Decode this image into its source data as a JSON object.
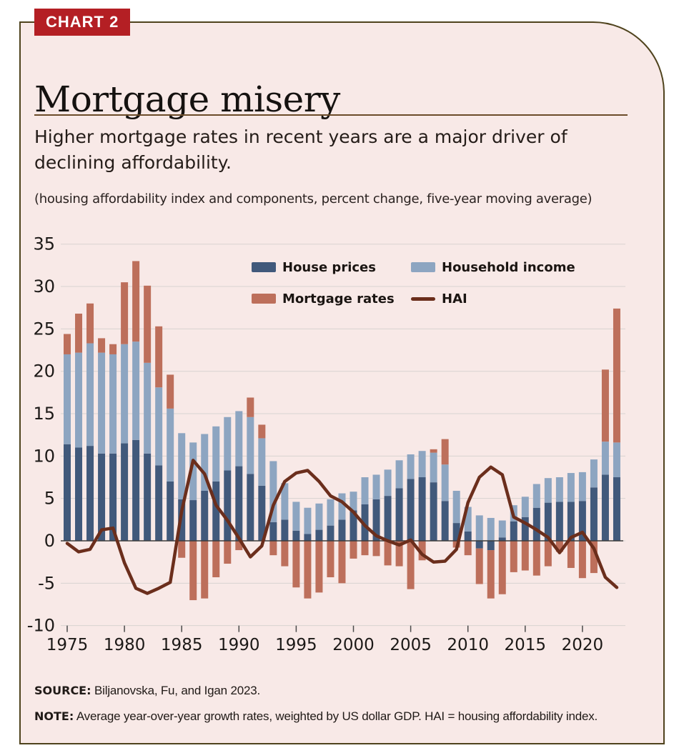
{
  "badge": "CHART 2",
  "title": "Mortgage misery",
  "subtitle": "Higher mortgage rates in recent years are a major driver of declining affordability.",
  "units_note": "(housing affordability index and components, percent change, five-year moving average)",
  "legend": {
    "items": [
      {
        "label": "House prices",
        "swatch": "house"
      },
      {
        "label": "Household income",
        "swatch": "income"
      },
      {
        "label": "Mortgage rates",
        "swatch": "mortgage"
      },
      {
        "label": "HAI",
        "swatch": "hai"
      }
    ]
  },
  "footer": {
    "source_label": "SOURCE:",
    "source_text": " Biljanovska, Fu, and Igan 2023.",
    "note_label": "NOTE:",
    "note_text": " Average year-over-year growth rates, weighted by US dollar GDP. HAI = housing affordability index."
  },
  "colors": {
    "house": "#41597b",
    "income": "#8da5c1",
    "mortgage": "#bd6f5b",
    "hai": "#6b2e1c",
    "card_bg": "#f8e9e7",
    "card_border": "#4f431d",
    "badge_bg": "#b41f24",
    "badge_text": "#ffffff",
    "grid": "#d9d3d0",
    "zero_line": "#3c3c3c",
    "tick": "#4a4a4a",
    "rule": "#6b4c2a"
  },
  "chart_data": {
    "type": "bar",
    "subtype": "stacked-bars-with-line",
    "title": "Mortgage misery",
    "xlabel": "",
    "ylabel": "percent change, five-year moving average",
    "ylim": [
      -10,
      35
    ],
    "ytick_step": 5,
    "grid": true,
    "legend_position": "top-center-inside",
    "categories": [
      1975,
      1976,
      1977,
      1978,
      1979,
      1980,
      1981,
      1982,
      1983,
      1984,
      1985,
      1986,
      1987,
      1988,
      1989,
      1990,
      1991,
      1992,
      1993,
      1994,
      1995,
      1996,
      1997,
      1998,
      1999,
      2000,
      2001,
      2002,
      2003,
      2004,
      2005,
      2006,
      2007,
      2008,
      2009,
      2010,
      2011,
      2012,
      2013,
      2014,
      2015,
      2016,
      2017,
      2018,
      2019,
      2020,
      2021,
      2022,
      2023
    ],
    "xticks": [
      1975,
      1980,
      1985,
      1990,
      1995,
      2000,
      2005,
      2010,
      2015,
      2020
    ],
    "series": [
      {
        "name": "House prices",
        "type": "bar",
        "role": "house",
        "values": [
          11.4,
          11.0,
          11.2,
          10.3,
          10.3,
          11.5,
          11.9,
          10.3,
          8.9,
          7.0,
          4.9,
          4.8,
          5.9,
          7.0,
          8.3,
          8.8,
          7.9,
          6.5,
          2.2,
          2.5,
          1.2,
          0.8,
          1.3,
          1.8,
          2.5,
          3.6,
          4.3,
          4.9,
          5.3,
          6.2,
          7.3,
          7.5,
          6.9,
          4.7,
          2.1,
          1.1,
          -0.9,
          -1.1,
          0.4,
          2.3,
          2.8,
          3.9,
          4.5,
          4.6,
          4.6,
          4.7,
          6.3,
          7.8,
          7.5
        ]
      },
      {
        "name": "Household income",
        "type": "bar",
        "role": "income",
        "values": [
          10.6,
          11.2,
          12.1,
          11.9,
          11.7,
          11.7,
          11.6,
          10.7,
          9.2,
          8.6,
          7.8,
          6.8,
          6.7,
          6.5,
          6.3,
          6.5,
          6.7,
          5.6,
          7.2,
          4.3,
          3.4,
          3.1,
          3.1,
          3.1,
          3.1,
          2.2,
          3.2,
          2.9,
          3.1,
          3.3,
          2.9,
          3.1,
          3.5,
          4.3,
          3.8,
          2.9,
          3.0,
          2.7,
          2.0,
          1.9,
          2.4,
          2.8,
          2.9,
          2.9,
          3.4,
          3.4,
          3.3,
          3.9,
          4.1
        ]
      },
      {
        "name": "Mortgage rates",
        "type": "bar",
        "role": "mortgage",
        "values": [
          2.4,
          4.6,
          4.7,
          1.7,
          1.2,
          7.3,
          9.5,
          9.1,
          7.2,
          4.0,
          -2.0,
          -7.0,
          -6.8,
          -4.3,
          -2.7,
          -1.1,
          2.3,
          1.6,
          -1.7,
          -3.0,
          -5.5,
          -6.8,
          -6.1,
          -4.3,
          -5.0,
          -2.1,
          -1.7,
          -1.8,
          -2.9,
          -3.0,
          -5.7,
          -2.3,
          0.4,
          3.0,
          -0.8,
          -1.7,
          -4.2,
          -5.7,
          -6.3,
          -3.7,
          -3.5,
          -4.1,
          -3.0,
          -1.3,
          -3.2,
          -4.4,
          -3.8,
          8.5,
          15.8
        ]
      },
      {
        "name": "HAI",
        "type": "line",
        "role": "hai",
        "values": [
          -0.3,
          -1.3,
          -1.0,
          1.3,
          1.5,
          -2.6,
          -5.6,
          -6.2,
          -5.6,
          -4.9,
          3.5,
          9.5,
          7.9,
          4.2,
          2.4,
          0.3,
          -1.9,
          -0.6,
          4.2,
          7.0,
          8.0,
          8.3,
          7.0,
          5.3,
          4.6,
          3.4,
          1.8,
          0.6,
          0.0,
          -0.5,
          0.1,
          -1.6,
          -2.5,
          -2.4,
          -1.0,
          4.5,
          7.5,
          8.7,
          7.8,
          2.8,
          2.1,
          1.3,
          0.4,
          -1.4,
          0.4,
          1.0,
          -0.9,
          -4.3,
          -5.5
        ]
      }
    ]
  }
}
